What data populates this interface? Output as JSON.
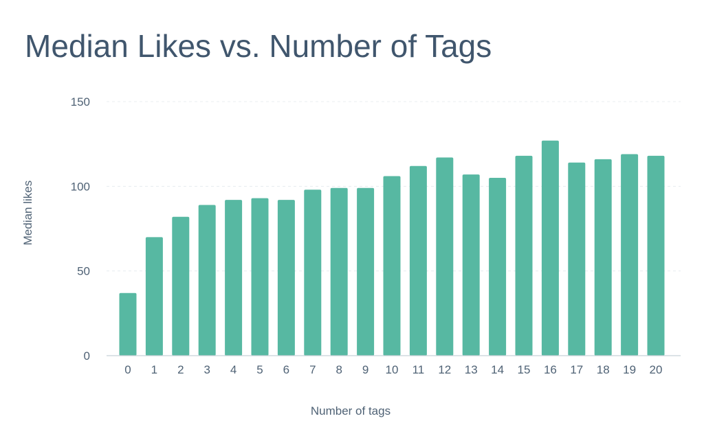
{
  "chart_data": {
    "type": "bar",
    "title": "Median Likes vs. Number of Tags",
    "xlabel": "Number of tags",
    "ylabel": "Median likes",
    "categories": [
      "0",
      "1",
      "2",
      "3",
      "4",
      "5",
      "6",
      "7",
      "8",
      "9",
      "10",
      "11",
      "12",
      "13",
      "14",
      "15",
      "16",
      "17",
      "18",
      "19",
      "20"
    ],
    "values": [
      37,
      70,
      82,
      89,
      92,
      93,
      92,
      98,
      99,
      99,
      106,
      112,
      117,
      107,
      105,
      118,
      127,
      114,
      116,
      119,
      118
    ],
    "ylim": [
      0,
      150
    ],
    "yticks": [
      0,
      50,
      100,
      150
    ],
    "grid": true,
    "bar_color": "#57b8a2"
  }
}
